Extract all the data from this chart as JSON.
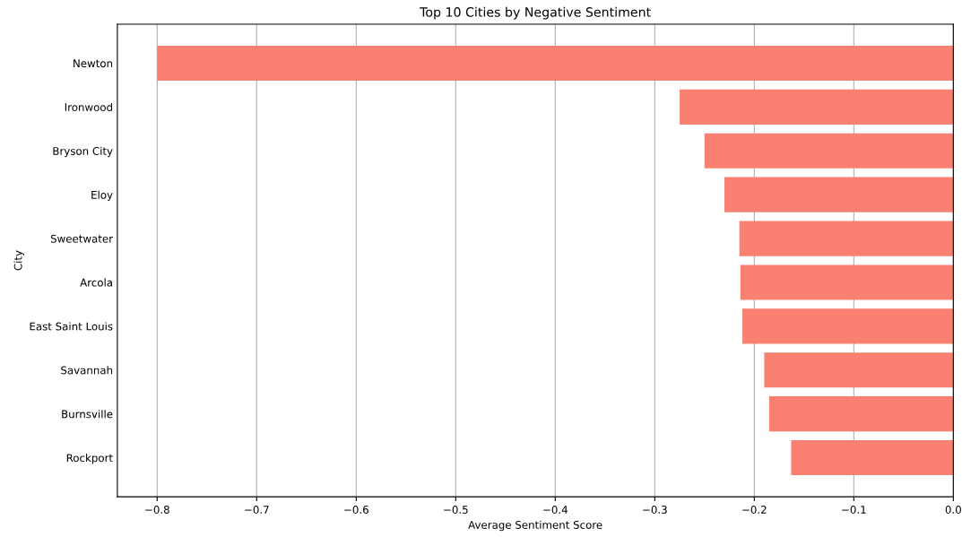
{
  "chart_data": {
    "type": "bar",
    "orientation": "horizontal",
    "title": "Top 10 Cities by Negative Sentiment",
    "xlabel": "Average Sentiment Score",
    "ylabel": "City",
    "categories": [
      "Newton",
      "Ironwood",
      "Bryson City",
      "Eloy",
      "Sweetwater",
      "Arcola",
      "East Saint Louis",
      "Savannah",
      "Burnsville",
      "Rockport"
    ],
    "values": [
      -0.8,
      -0.275,
      -0.25,
      -0.23,
      -0.215,
      -0.214,
      -0.212,
      -0.19,
      -0.185,
      -0.163
    ],
    "color": "#fa8072",
    "xlim": [
      -0.84,
      0.0
    ],
    "xticks": [
      {
        "value": -0.8,
        "label": "−0.8"
      },
      {
        "value": -0.7,
        "label": "−0.7"
      },
      {
        "value": -0.6,
        "label": "−0.6"
      },
      {
        "value": -0.5,
        "label": "−0.5"
      },
      {
        "value": -0.4,
        "label": "−0.4"
      },
      {
        "value": -0.3,
        "label": "−0.3"
      },
      {
        "value": -0.2,
        "label": "−0.2"
      },
      {
        "value": -0.1,
        "label": "−0.1"
      },
      {
        "value": 0.0,
        "label": "0.0"
      }
    ],
    "grid": "x"
  }
}
